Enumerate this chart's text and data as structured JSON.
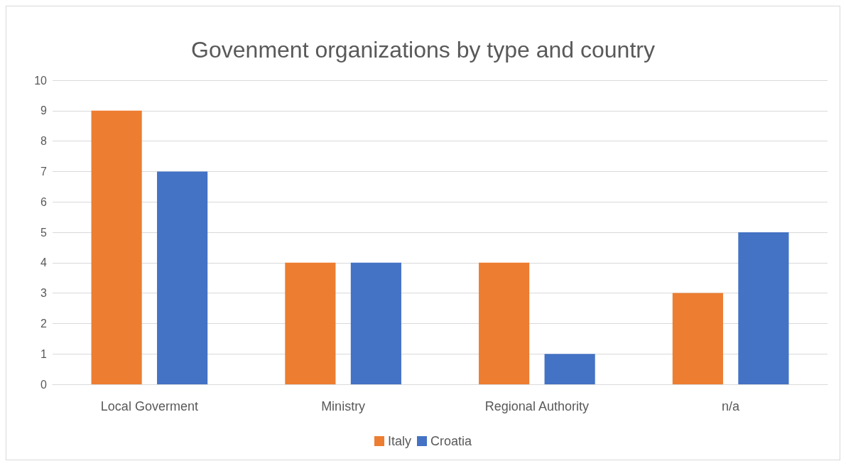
{
  "chart_data": {
    "type": "bar",
    "title": "Govenment organizations by type and country",
    "categories": [
      "Local Goverment",
      "Ministry",
      "Regional Authority",
      "n/a"
    ],
    "series": [
      {
        "name": "Italy",
        "color": "#ed7d31",
        "values": [
          9,
          4,
          4,
          3
        ]
      },
      {
        "name": "Croatia",
        "color": "#4472c4",
        "values": [
          7,
          4,
          1,
          5
        ]
      }
    ],
    "ylim": [
      0,
      10
    ],
    "yticks": [
      0,
      1,
      2,
      3,
      4,
      5,
      6,
      7,
      8,
      9,
      10
    ],
    "grid": "y",
    "legend": "bottom"
  }
}
